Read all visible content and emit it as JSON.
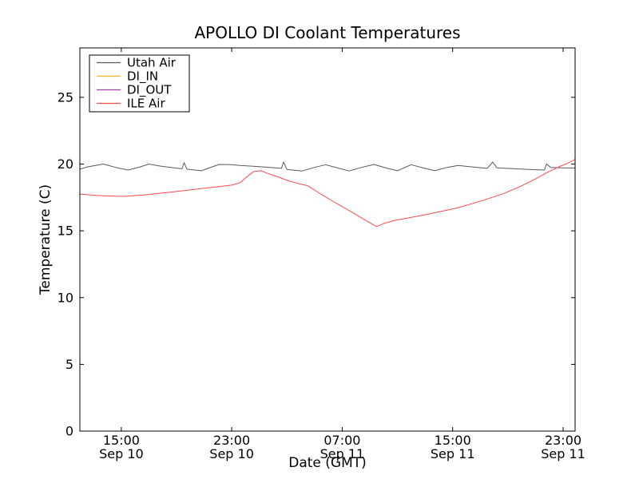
{
  "figure": {
    "background": "#ffffff",
    "axes_color": "#000000",
    "text_color": "#000000"
  },
  "chart_data": {
    "type": "line",
    "title": "APOLLO DI Coolant Temperatures",
    "xlabel": "Date (GMT)",
    "ylabel": "Temperature (C)",
    "grid": false,
    "x_unit_note": "hours after Sep 10 12:00 GMT",
    "xlim": [
      0,
      35.87
    ],
    "ylim": [
      0,
      28.7
    ],
    "yticks": {
      "values": [
        0,
        5,
        10,
        15,
        20,
        25
      ],
      "labels": [
        "0",
        "5",
        "10",
        "15",
        "20",
        "25"
      ]
    },
    "xticks": {
      "values": [
        3,
        11,
        19,
        27,
        35
      ],
      "labels": [
        {
          "time": "15:00",
          "date": "Sep 10"
        },
        {
          "time": "23:00",
          "date": "Sep 10"
        },
        {
          "time": "07:00",
          "date": "Sep 11"
        },
        {
          "time": "15:00",
          "date": "Sep 11"
        },
        {
          "time": "23:00",
          "date": "Sep 11"
        }
      ]
    },
    "legend": {
      "position": "upper-left",
      "background": "#ffffff",
      "border_color": "#000000"
    },
    "series": [
      {
        "name": "Utah Air",
        "color": "#595959",
        "visible_in_plot": true,
        "points": [
          [
            0.0,
            19.62
          ],
          [
            0.6,
            19.8
          ],
          [
            1.7,
            20.0
          ],
          [
            2.6,
            19.75
          ],
          [
            3.5,
            19.55
          ],
          [
            4.4,
            19.8
          ],
          [
            5.0,
            20.0
          ],
          [
            5.8,
            19.85
          ],
          [
            6.6,
            19.75
          ],
          [
            7.4,
            19.65
          ],
          [
            7.55,
            20.1
          ],
          [
            7.75,
            19.62
          ],
          [
            8.8,
            19.5
          ],
          [
            9.6,
            19.8
          ],
          [
            10.1,
            19.97
          ],
          [
            11.0,
            19.95
          ],
          [
            11.6,
            19.9
          ],
          [
            12.8,
            19.82
          ],
          [
            13.8,
            19.75
          ],
          [
            14.6,
            19.68
          ],
          [
            14.75,
            20.15
          ],
          [
            15.0,
            19.6
          ],
          [
            16.1,
            19.48
          ],
          [
            17.0,
            19.75
          ],
          [
            17.8,
            19.95
          ],
          [
            18.7,
            19.7
          ],
          [
            19.5,
            19.48
          ],
          [
            20.4,
            19.75
          ],
          [
            21.3,
            19.97
          ],
          [
            22.2,
            19.7
          ],
          [
            23.0,
            19.5
          ],
          [
            24.0,
            19.95
          ],
          [
            24.9,
            19.7
          ],
          [
            25.7,
            19.5
          ],
          [
            26.6,
            19.75
          ],
          [
            27.4,
            19.9
          ],
          [
            28.5,
            19.78
          ],
          [
            29.5,
            19.68
          ],
          [
            29.9,
            20.15
          ],
          [
            30.2,
            19.72
          ],
          [
            31.5,
            19.65
          ],
          [
            32.8,
            19.58
          ],
          [
            33.65,
            19.55
          ],
          [
            33.8,
            20.0
          ],
          [
            34.1,
            19.75
          ],
          [
            35.0,
            19.72
          ],
          [
            35.87,
            19.7
          ]
        ]
      },
      {
        "name": "DI_IN",
        "color": "#ffb02e",
        "visible_in_plot": false,
        "points": []
      },
      {
        "name": "DI_OUT",
        "color": "#a23ea2",
        "visible_in_plot": false,
        "points": []
      },
      {
        "name": "ILE Air",
        "color": "#ff4a4a",
        "visible_in_plot": true,
        "points": [
          [
            0.0,
            17.75
          ],
          [
            1.2,
            17.65
          ],
          [
            2.3,
            17.6
          ],
          [
            3.2,
            17.58
          ],
          [
            4.6,
            17.68
          ],
          [
            6.4,
            17.88
          ],
          [
            8.1,
            18.08
          ],
          [
            9.8,
            18.28
          ],
          [
            11.0,
            18.42
          ],
          [
            11.6,
            18.6
          ],
          [
            12.1,
            19.05
          ],
          [
            12.6,
            19.45
          ],
          [
            13.1,
            19.5
          ],
          [
            13.6,
            19.3
          ],
          [
            14.3,
            19.05
          ],
          [
            15.0,
            18.78
          ],
          [
            15.9,
            18.52
          ],
          [
            16.5,
            18.38
          ],
          [
            17.3,
            17.85
          ],
          [
            18.5,
            17.1
          ],
          [
            19.7,
            16.4
          ],
          [
            20.5,
            15.9
          ],
          [
            21.1,
            15.55
          ],
          [
            21.5,
            15.32
          ],
          [
            22.0,
            15.55
          ],
          [
            22.8,
            15.78
          ],
          [
            23.7,
            15.95
          ],
          [
            24.9,
            16.18
          ],
          [
            26.0,
            16.42
          ],
          [
            27.2,
            16.68
          ],
          [
            28.3,
            17.0
          ],
          [
            29.5,
            17.38
          ],
          [
            30.7,
            17.8
          ],
          [
            31.8,
            18.28
          ],
          [
            33.0,
            18.88
          ],
          [
            33.8,
            19.35
          ],
          [
            34.7,
            19.8
          ],
          [
            35.3,
            20.05
          ],
          [
            35.87,
            20.35
          ]
        ]
      }
    ]
  }
}
